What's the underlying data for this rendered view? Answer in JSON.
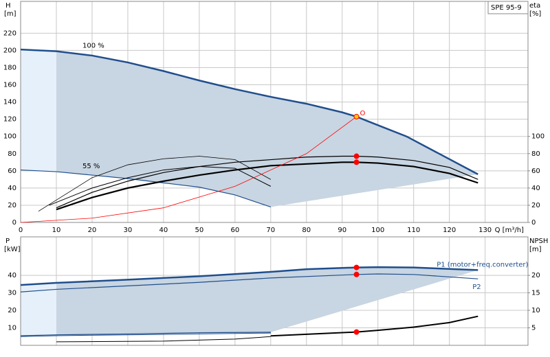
{
  "chart_data": [
    {
      "type": "line",
      "title": "SPE 95-9",
      "ylabel": "H",
      "yunit": "[m]",
      "y2label": "eta",
      "y2unit": "[%]",
      "xlabel": "Q [m³/h]",
      "xlim": [
        0,
        142
      ],
      "xticks": [
        0,
        10,
        20,
        30,
        40,
        50,
        60,
        70,
        80,
        90,
        100,
        110,
        120,
        130
      ],
      "ylim": [
        0,
        257
      ],
      "yticks": [
        0,
        20,
        40,
        60,
        80,
        100,
        120,
        140,
        160,
        180,
        200,
        220
      ],
      "y2lim": [
        0,
        257
      ],
      "y2ticks": [
        0,
        20,
        40,
        60,
        80,
        100
      ],
      "grid": true,
      "fill": "#c8d5e2",
      "fill_light": "#e6f0fa",
      "series": [
        {
          "name": "100 %",
          "label_position": "start",
          "color": "#1f4e8c",
          "line_width": 2.5,
          "x": [
            0,
            10,
            20,
            30,
            40,
            50,
            60,
            70,
            80,
            90,
            94,
            97,
            108,
            128
          ],
          "values": [
            201,
            199,
            194,
            186,
            176,
            165,
            155,
            146,
            138,
            128,
            123,
            118,
            100,
            56
          ]
        },
        {
          "name": "55 %",
          "label_position": "start",
          "color": "#1f4e8c",
          "line_width": 1.2,
          "x": [
            0,
            10,
            20,
            30,
            40,
            50,
            60,
            70
          ],
          "values": [
            61,
            59,
            55,
            51,
            46,
            41,
            32,
            18
          ]
        },
        {
          "axis": "y2",
          "color": "#000000",
          "line_width": 1.2,
          "x": [
            10,
            20,
            30,
            40,
            50,
            60,
            70,
            80,
            90,
            94,
            100,
            110,
            120,
            128
          ],
          "values": [
            17,
            35,
            48,
            58,
            65,
            70,
            73,
            76,
            77,
            77,
            76,
            72,
            64,
            50
          ]
        },
        {
          "axis": "y2",
          "color": "#000000",
          "line_width": 2.2,
          "x": [
            10,
            20,
            30,
            40,
            50,
            60,
            70,
            80,
            90,
            94,
            100,
            110,
            120,
            128
          ],
          "values": [
            15,
            29,
            40,
            48,
            55,
            61,
            66,
            68,
            70,
            70,
            69,
            65,
            57,
            46
          ]
        },
        {
          "axis": "y2",
          "color": "#000000",
          "line_width": 0.8,
          "x": [
            5,
            20,
            30,
            40,
            50,
            60,
            70
          ],
          "values": [
            13,
            52,
            67,
            74,
            77,
            73,
            50
          ]
        },
        {
          "axis": "y2",
          "color": "#000000",
          "line_width": 1,
          "x": [
            8,
            20,
            30,
            40,
            50,
            60,
            70
          ],
          "values": [
            20,
            40,
            52,
            61,
            65,
            63,
            42
          ]
        },
        {
          "color": "#ff0000",
          "line_width": 0.8,
          "x": [
            0,
            20,
            40,
            60,
            80,
            94
          ],
          "values": [
            0,
            5,
            17,
            42,
            80,
            123
          ]
        }
      ],
      "points": [
        {
          "x": 94,
          "y": 123,
          "color": "#ffcc00",
          "label": "O"
        },
        {
          "x": 94,
          "y": 77,
          "color": "#ff0000",
          "axis": "y2"
        },
        {
          "x": 94,
          "y": 70,
          "color": "#ff0000",
          "axis": "y2"
        }
      ]
    },
    {
      "type": "line",
      "ylabel": "P",
      "yunit": "[kW]",
      "y2label": "NPSH",
      "y2unit": "[m]",
      "xlim": [
        0,
        142
      ],
      "xticks": [
        0,
        10,
        20,
        30,
        40,
        50,
        60,
        70,
        80,
        90,
        100,
        110,
        120,
        130
      ],
      "ylim": [
        0,
        62
      ],
      "yticks": [
        10,
        20,
        30,
        40
      ],
      "y2lim": [
        0,
        31
      ],
      "y2ticks": [
        5,
        10,
        15,
        20
      ],
      "grid": true,
      "fill": "#c8d5e2",
      "fill_light": "#e6f0fa",
      "series": [
        {
          "name": "P1 (motor+freq.converter)",
          "label_position": "end",
          "color": "#1f4e8c",
          "line_width": 2.5,
          "x": [
            0,
            10,
            30,
            50,
            70,
            80,
            94,
            100,
            110,
            128
          ],
          "values": [
            34.5,
            35.7,
            37.5,
            39.5,
            42,
            43.5,
            44.5,
            44.7,
            44.5,
            43
          ]
        },
        {
          "color": "#1f4e8c",
          "line_width": 1.2,
          "x": [
            0,
            10,
            30,
            50,
            70
          ],
          "values": [
            5.5,
            6,
            6.5,
            7.2,
            7.5
          ]
        },
        {
          "name": "P2",
          "label_position": "end",
          "color": "#1f4e8c",
          "line_width": 1.2,
          "x": [
            0,
            10,
            30,
            50,
            70,
            94,
            100,
            110,
            128
          ],
          "values": [
            30.5,
            32,
            34,
            36,
            38.5,
            40.5,
            40.8,
            40.5,
            38
          ]
        },
        {
          "color": "#1f4e8c",
          "line_width": 1,
          "x": [
            0,
            10,
            30,
            50,
            70
          ],
          "values": [
            5,
            5.5,
            6,
            6.5,
            7
          ]
        },
        {
          "axis": "y2",
          "color": "#000000",
          "line_width": 1,
          "x": [
            10,
            40,
            60,
            70
          ],
          "values": [
            1,
            1.2,
            1.8,
            2.5
          ]
        },
        {
          "axis": "y2",
          "color": "#000000",
          "line_width": 2,
          "x": [
            70,
            94,
            100,
            110,
            120,
            128
          ],
          "values": [
            2.7,
            3.8,
            4.3,
            5.2,
            6.5,
            8.3
          ]
        }
      ],
      "points": [
        {
          "x": 94,
          "y": 44.5,
          "color": "#ff0000"
        },
        {
          "x": 94,
          "y": 40.5,
          "color": "#ff0000"
        },
        {
          "x": 94,
          "y": 3.8,
          "color": "#ff0000",
          "axis": "y2"
        }
      ]
    }
  ]
}
